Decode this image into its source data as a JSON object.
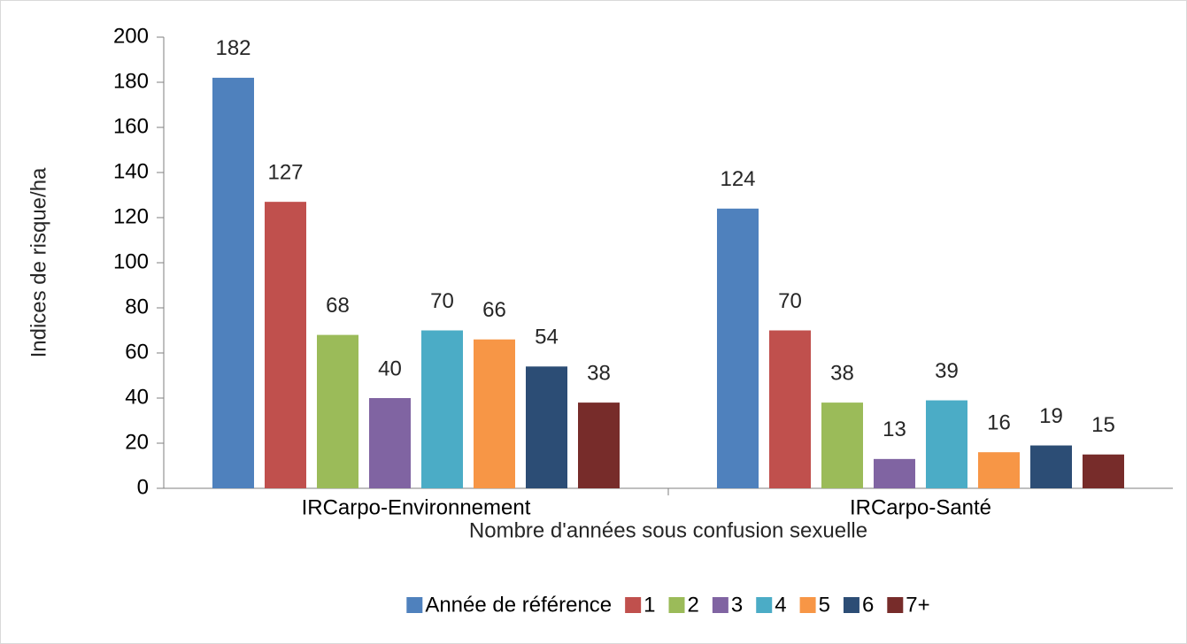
{
  "chart_data": {
    "type": "bar",
    "y_label": "Indices de risque/ha",
    "x_label": "Nombre d'années sous confusion sexuelle",
    "categories": [
      "IRCarpo-Environnement",
      "IRCarpo-Santé"
    ],
    "series": [
      {
        "name": "Année de référence",
        "color": "#4f81bd",
        "values": [
          182,
          124
        ]
      },
      {
        "name": "1",
        "color": "#c0504d",
        "values": [
          127,
          70
        ]
      },
      {
        "name": "2",
        "color": "#9bbb59",
        "values": [
          68,
          38
        ]
      },
      {
        "name": "3",
        "color": "#8064a2",
        "values": [
          40,
          13
        ]
      },
      {
        "name": "4",
        "color": "#4bacc6",
        "values": [
          70,
          39
        ]
      },
      {
        "name": "5",
        "color": "#f79646",
        "values": [
          66,
          16
        ]
      },
      {
        "name": "6",
        "color": "#2c4d75",
        "values": [
          54,
          19
        ]
      },
      {
        "name": "7+",
        "color": "#772c2a",
        "values": [
          38,
          15
        ]
      }
    ],
    "ylim": [
      0,
      200
    ],
    "yticks": [
      0,
      20,
      40,
      60,
      80,
      100,
      120,
      140,
      160,
      180,
      200
    ],
    "legend": "bottom"
  }
}
